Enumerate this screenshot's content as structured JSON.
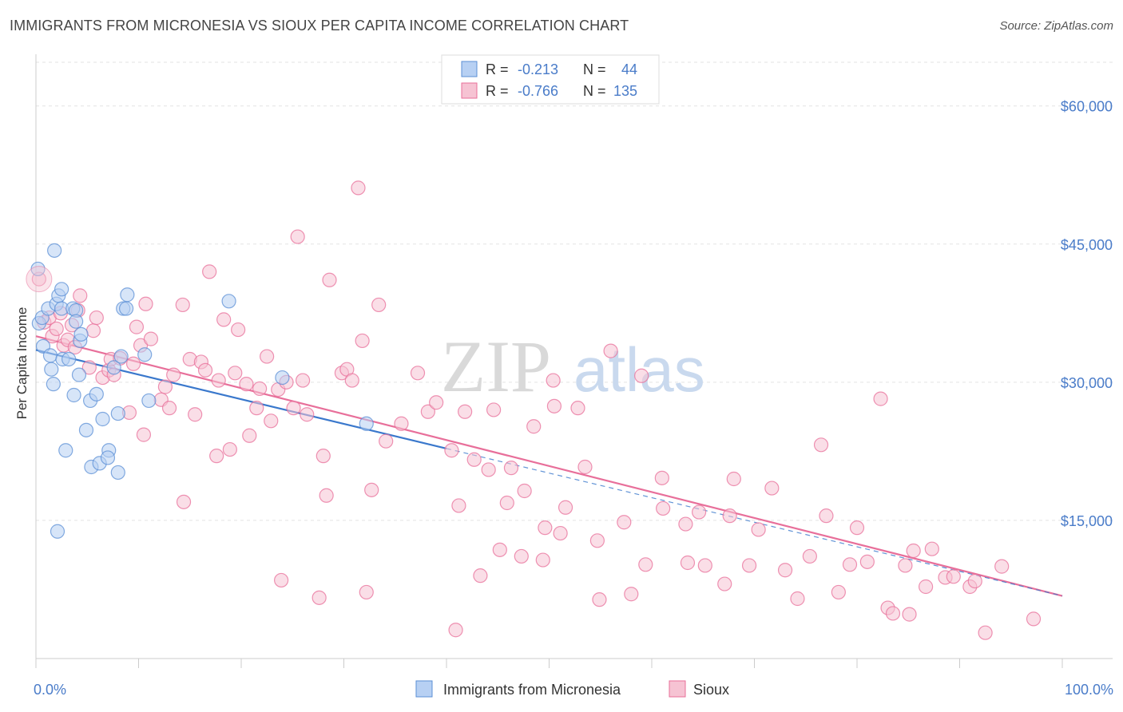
{
  "title": "IMMIGRANTS FROM MICRONESIA VS SIOUX PER CAPITA INCOME CORRELATION CHART",
  "source": "Source: ZipAtlas.com",
  "watermark": {
    "zip": "ZIP",
    "atlas": "atlas"
  },
  "colors": {
    "blue": "#5b8fd6",
    "blue_fill": "#b7d0f3",
    "pink": "#e86f9a",
    "pink_fill": "#f6c3d3",
    "tick_text": "#4a7cc9"
  },
  "legend_top": [
    {
      "r_label": "R =",
      "r_value": "-0.213",
      "n_label": "N =",
      "n_value": "44",
      "color": "blue"
    },
    {
      "r_label": "R =",
      "r_value": "-0.766",
      "n_label": "N =",
      "n_value": "135",
      "color": "pink"
    }
  ],
  "chart_data": {
    "type": "scatter",
    "ylabel": "Per Capita Income",
    "xlim": [
      0,
      100
    ],
    "ylim": [
      0,
      65000
    ],
    "y_ticks": [
      {
        "value": 15000,
        "label": "$15,000"
      },
      {
        "value": 30000,
        "label": "$30,000"
      },
      {
        "value": 45000,
        "label": "$45,000"
      },
      {
        "value": 60000,
        "label": "$60,000"
      }
    ],
    "x_tick_labels": {
      "min": "0.0%",
      "max": "100.0%"
    },
    "grid": true,
    "legend_position": "bottom",
    "series": [
      {
        "name": "Immigrants from Micronesia",
        "color": "blue",
        "trend": {
          "x0": 0,
          "y0": 33500,
          "x1": 40,
          "y1": 22800,
          "dashed_to": 100,
          "dashed_y": 6800
        },
        "points": [
          [
            0.2,
            42300
          ],
          [
            0.3,
            36400
          ],
          [
            0.6,
            37000
          ],
          [
            0.7,
            33900
          ],
          [
            1.2,
            38000
          ],
          [
            1.4,
            32900
          ],
          [
            1.5,
            31400
          ],
          [
            1.7,
            29800
          ],
          [
            1.8,
            44300
          ],
          [
            2.0,
            38500
          ],
          [
            2.1,
            13800
          ],
          [
            2.2,
            39400
          ],
          [
            2.5,
            40100
          ],
          [
            2.5,
            38000
          ],
          [
            2.6,
            32500
          ],
          [
            2.9,
            22600
          ],
          [
            3.2,
            32500
          ],
          [
            3.6,
            38000
          ],
          [
            3.7,
            28600
          ],
          [
            3.9,
            37800
          ],
          [
            3.9,
            36600
          ],
          [
            4.2,
            30800
          ],
          [
            4.3,
            34500
          ],
          [
            4.4,
            35200
          ],
          [
            4.9,
            24800
          ],
          [
            5.3,
            28000
          ],
          [
            5.4,
            20800
          ],
          [
            5.9,
            28700
          ],
          [
            6.2,
            21200
          ],
          [
            6.5,
            26000
          ],
          [
            7.1,
            22600
          ],
          [
            7.0,
            21800
          ],
          [
            7.6,
            31600
          ],
          [
            8.0,
            20200
          ],
          [
            8.0,
            26600
          ],
          [
            8.3,
            32800
          ],
          [
            8.5,
            38000
          ],
          [
            8.8,
            38000
          ],
          [
            8.9,
            39500
          ],
          [
            10.6,
            33000
          ],
          [
            11.0,
            28000
          ],
          [
            18.8,
            38800
          ],
          [
            24.0,
            30500
          ],
          [
            32.2,
            25500
          ]
        ]
      },
      {
        "name": "Sioux",
        "color": "pink",
        "trend": {
          "x0": 0,
          "y0": 35000,
          "x1": 100,
          "y1": 6800
        },
        "points": [
          [
            0.3,
            41200
          ],
          [
            0.8,
            36500
          ],
          [
            1.3,
            37000
          ],
          [
            1.6,
            35000
          ],
          [
            2.0,
            35800
          ],
          [
            2.4,
            37500
          ],
          [
            2.7,
            34000
          ],
          [
            3.1,
            34600
          ],
          [
            3.5,
            36200
          ],
          [
            3.8,
            33800
          ],
          [
            4.1,
            37800
          ],
          [
            4.3,
            39400
          ],
          [
            5.2,
            31600
          ],
          [
            5.6,
            35600
          ],
          [
            5.9,
            37000
          ],
          [
            6.5,
            30500
          ],
          [
            7.1,
            31300
          ],
          [
            7.3,
            32500
          ],
          [
            7.6,
            30800
          ],
          [
            8.2,
            32600
          ],
          [
            9.1,
            26700
          ],
          [
            9.5,
            32000
          ],
          [
            9.8,
            36000
          ],
          [
            10.2,
            34000
          ],
          [
            10.5,
            24300
          ],
          [
            10.7,
            38500
          ],
          [
            11.2,
            34700
          ],
          [
            12.2,
            28100
          ],
          [
            12.6,
            29500
          ],
          [
            13.0,
            27200
          ],
          [
            13.4,
            30800
          ],
          [
            14.3,
            38400
          ],
          [
            14.4,
            17000
          ],
          [
            15.0,
            32500
          ],
          [
            15.5,
            26500
          ],
          [
            16.1,
            32200
          ],
          [
            16.5,
            31300
          ],
          [
            16.9,
            42000
          ],
          [
            17.6,
            22000
          ],
          [
            17.8,
            30200
          ],
          [
            18.3,
            36800
          ],
          [
            18.9,
            22700
          ],
          [
            19.4,
            31000
          ],
          [
            19.7,
            35700
          ],
          [
            20.5,
            29800
          ],
          [
            20.8,
            24200
          ],
          [
            21.5,
            27200
          ],
          [
            21.8,
            29300
          ],
          [
            22.5,
            32800
          ],
          [
            22.9,
            25800
          ],
          [
            23.6,
            29200
          ],
          [
            23.9,
            8500
          ],
          [
            24.4,
            30000
          ],
          [
            25.1,
            27200
          ],
          [
            25.5,
            45800
          ],
          [
            26.0,
            30200
          ],
          [
            26.4,
            26500
          ],
          [
            27.6,
            6600
          ],
          [
            28.0,
            22000
          ],
          [
            28.3,
            17700
          ],
          [
            28.6,
            41100
          ],
          [
            29.8,
            31000
          ],
          [
            30.3,
            31400
          ],
          [
            30.8,
            30200
          ],
          [
            31.4,
            51100
          ],
          [
            31.8,
            34500
          ],
          [
            32.2,
            7200
          ],
          [
            32.7,
            18300
          ],
          [
            33.4,
            38400
          ],
          [
            34.1,
            23600
          ],
          [
            35.6,
            25500
          ],
          [
            37.2,
            31000
          ],
          [
            38.2,
            26800
          ],
          [
            39.0,
            27800
          ],
          [
            40.5,
            22600
          ],
          [
            40.9,
            3100
          ],
          [
            41.2,
            16600
          ],
          [
            41.8,
            26800
          ],
          [
            42.7,
            21600
          ],
          [
            43.3,
            9000
          ],
          [
            44.1,
            20500
          ],
          [
            44.6,
            27000
          ],
          [
            45.2,
            11800
          ],
          [
            45.9,
            16900
          ],
          [
            46.3,
            20700
          ],
          [
            47.3,
            11100
          ],
          [
            47.6,
            18200
          ],
          [
            48.5,
            25200
          ],
          [
            49.4,
            10700
          ],
          [
            49.6,
            14200
          ],
          [
            50.4,
            30200
          ],
          [
            50.5,
            27400
          ],
          [
            51.1,
            13600
          ],
          [
            51.6,
            16400
          ],
          [
            52.8,
            27200
          ],
          [
            53.5,
            20800
          ],
          [
            54.7,
            12800
          ],
          [
            54.9,
            6400
          ],
          [
            56.0,
            33400
          ],
          [
            57.3,
            14800
          ],
          [
            58.0,
            7000
          ],
          [
            59.0,
            30700
          ],
          [
            59.4,
            10200
          ],
          [
            61.0,
            19600
          ],
          [
            61.1,
            16300
          ],
          [
            63.3,
            14600
          ],
          [
            63.5,
            10400
          ],
          [
            64.6,
            15900
          ],
          [
            65.2,
            10100
          ],
          [
            67.1,
            8100
          ],
          [
            67.6,
            15500
          ],
          [
            68.0,
            19500
          ],
          [
            69.5,
            10100
          ],
          [
            70.4,
            14000
          ],
          [
            71.7,
            18500
          ],
          [
            73.0,
            9600
          ],
          [
            74.2,
            6500
          ],
          [
            75.4,
            11100
          ],
          [
            76.5,
            23200
          ],
          [
            77.0,
            15500
          ],
          [
            78.2,
            7200
          ],
          [
            79.3,
            10200
          ],
          [
            80.0,
            14200
          ],
          [
            81.0,
            10500
          ],
          [
            82.3,
            28200
          ],
          [
            83.0,
            5500
          ],
          [
            83.5,
            4900
          ],
          [
            84.7,
            10100
          ],
          [
            85.1,
            4800
          ],
          [
            85.5,
            11700
          ],
          [
            86.7,
            7800
          ],
          [
            87.3,
            11900
          ],
          [
            88.6,
            8800
          ],
          [
            89.4,
            8900
          ],
          [
            91.0,
            7800
          ],
          [
            91.5,
            8400
          ],
          [
            92.5,
            2800
          ],
          [
            94.1,
            10000
          ],
          [
            97.2,
            4300
          ]
        ]
      }
    ]
  }
}
